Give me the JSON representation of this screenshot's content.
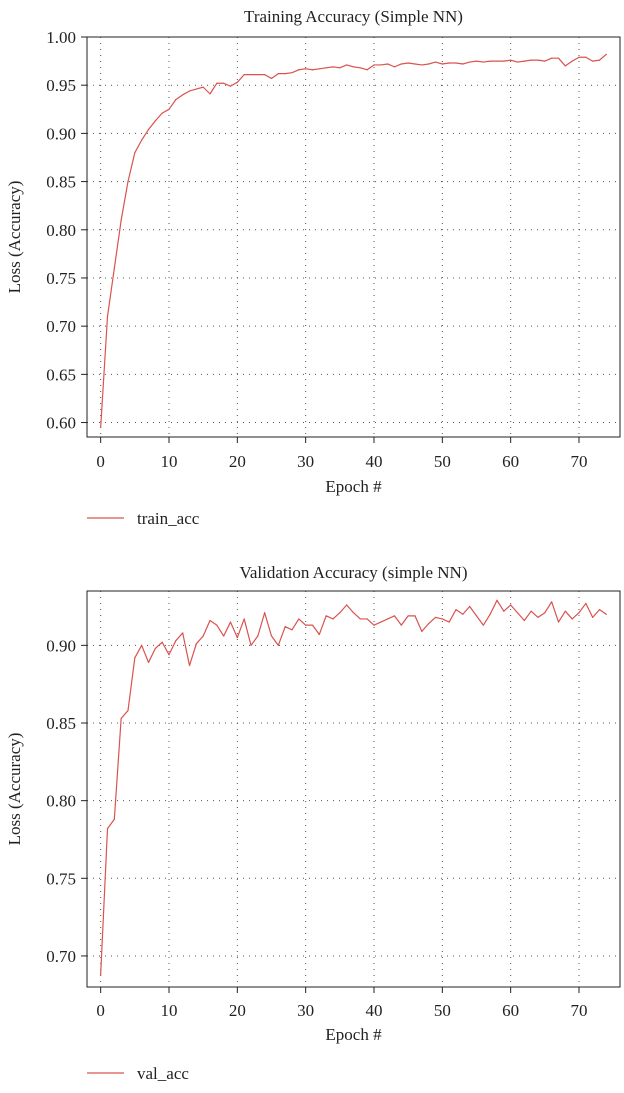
{
  "chart_data": [
    {
      "type": "line",
      "title": "Training Accuracy (Simple NN)",
      "xlabel": "Epoch #",
      "ylabel": "Loss (Accuracy)",
      "xlim": [
        -2,
        76
      ],
      "ylim": [
        0.585,
        1.0
      ],
      "xticks": [
        0,
        10,
        20,
        30,
        40,
        50,
        60,
        70
      ],
      "yticks": [
        0.6,
        0.65,
        0.7,
        0.75,
        0.8,
        0.85,
        0.9,
        0.95,
        1.0
      ],
      "grid": true,
      "legend_position": "bottom-left",
      "line_color": "#d9534f",
      "series": [
        {
          "name": "train_acc",
          "x": [
            0,
            1,
            2,
            3,
            4,
            5,
            6,
            7,
            8,
            9,
            10,
            11,
            12,
            13,
            14,
            15,
            16,
            17,
            18,
            19,
            20,
            21,
            22,
            23,
            24,
            25,
            26,
            27,
            28,
            29,
            30,
            31,
            32,
            33,
            34,
            35,
            36,
            37,
            38,
            39,
            40,
            41,
            42,
            43,
            44,
            45,
            46,
            47,
            48,
            49,
            50,
            51,
            52,
            53,
            54,
            55,
            56,
            57,
            58,
            59,
            60,
            61,
            62,
            63,
            64,
            65,
            66,
            67,
            68,
            69,
            70,
            71,
            72,
            73,
            74
          ],
          "values": [
            0.595,
            0.71,
            0.76,
            0.81,
            0.85,
            0.88,
            0.893,
            0.904,
            0.913,
            0.921,
            0.925,
            0.935,
            0.94,
            0.944,
            0.946,
            0.948,
            0.941,
            0.952,
            0.952,
            0.949,
            0.953,
            0.961,
            0.961,
            0.961,
            0.961,
            0.957,
            0.962,
            0.962,
            0.963,
            0.966,
            0.967,
            0.966,
            0.967,
            0.968,
            0.969,
            0.968,
            0.971,
            0.969,
            0.968,
            0.966,
            0.971,
            0.971,
            0.972,
            0.969,
            0.972,
            0.973,
            0.972,
            0.971,
            0.972,
            0.974,
            0.972,
            0.973,
            0.973,
            0.972,
            0.974,
            0.975,
            0.974,
            0.975,
            0.975,
            0.975,
            0.976,
            0.974,
            0.975,
            0.976,
            0.976,
            0.975,
            0.978,
            0.978,
            0.97,
            0.975,
            0.979,
            0.979,
            0.975,
            0.976,
            0.982
          ]
        }
      ]
    },
    {
      "type": "line",
      "title": "Validation Accuracy (simple NN)",
      "xlabel": "Epoch #",
      "ylabel": "Loss (Accuracy)",
      "xlim": [
        -2,
        76
      ],
      "ylim": [
        0.68,
        0.935
      ],
      "xticks": [
        0,
        10,
        20,
        30,
        40,
        50,
        60,
        70
      ],
      "yticks": [
        0.7,
        0.75,
        0.8,
        0.85,
        0.9
      ],
      "grid": true,
      "legend_position": "bottom-left",
      "line_color": "#d9534f",
      "series": [
        {
          "name": "val_acc",
          "x": [
            0,
            1,
            2,
            3,
            4,
            5,
            6,
            7,
            8,
            9,
            10,
            11,
            12,
            13,
            14,
            15,
            16,
            17,
            18,
            19,
            20,
            21,
            22,
            23,
            24,
            25,
            26,
            27,
            28,
            29,
            30,
            31,
            32,
            33,
            34,
            35,
            36,
            37,
            38,
            39,
            40,
            41,
            42,
            43,
            44,
            45,
            46,
            47,
            48,
            49,
            50,
            51,
            52,
            53,
            54,
            55,
            56,
            57,
            58,
            59,
            60,
            61,
            62,
            63,
            64,
            65,
            66,
            67,
            68,
            69,
            70,
            71,
            72,
            73,
            74
          ],
          "values": [
            0.688,
            0.782,
            0.788,
            0.853,
            0.858,
            0.892,
            0.9,
            0.889,
            0.898,
            0.902,
            0.894,
            0.903,
            0.908,
            0.887,
            0.901,
            0.906,
            0.916,
            0.913,
            0.906,
            0.915,
            0.905,
            0.917,
            0.9,
            0.906,
            0.921,
            0.906,
            0.9,
            0.912,
            0.91,
            0.917,
            0.913,
            0.913,
            0.907,
            0.919,
            0.917,
            0.921,
            0.926,
            0.921,
            0.917,
            0.917,
            0.913,
            0.915,
            0.917,
            0.919,
            0.913,
            0.919,
            0.919,
            0.909,
            0.914,
            0.918,
            0.917,
            0.915,
            0.923,
            0.92,
            0.925,
            0.919,
            0.913,
            0.92,
            0.929,
            0.922,
            0.926,
            0.921,
            0.916,
            0.922,
            0.918,
            0.921,
            0.928,
            0.915,
            0.922,
            0.917,
            0.921,
            0.927,
            0.918,
            0.923,
            0.92
          ]
        }
      ]
    }
  ]
}
